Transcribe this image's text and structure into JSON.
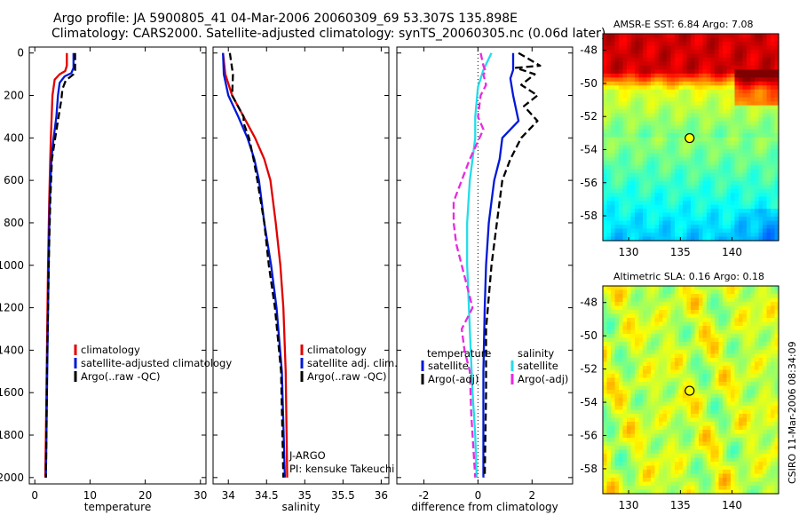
{
  "header": {
    "title_line1": "Argo profile: JA 5900805_41 04-Mar-2006 20060309_69 53.307S 135.898E",
    "title_line2": "Climatology: CARS2000. Satellite-adjusted climatology: synTS_20060305.nc (0.06d later)"
  },
  "side_label": "CSIRO 11-Mar-2006 08:34:09",
  "colors": {
    "climatology": "#e00000",
    "satellite": "#0018d8",
    "argo": "#000000",
    "sal_satellite": "#22dde8",
    "sal_argo": "#e82ae0"
  },
  "chart_data": [
    {
      "type": "line",
      "panel": "temperature",
      "xlabel": "temperature",
      "xlim": [
        -1,
        31
      ],
      "xticks": [
        0,
        10,
        20,
        30
      ],
      "ylim": [
        2050,
        0
      ],
      "yticks": [
        0,
        200,
        400,
        600,
        800,
        1000,
        1200,
        1400,
        1600,
        1800,
        2000
      ],
      "series": [
        {
          "name": "climatology",
          "style": "solid",
          "color_key": "climatology",
          "points": [
            [
              5.8,
              0
            ],
            [
              5.8,
              60
            ],
            [
              5.5,
              85
            ],
            [
              4.5,
              100
            ],
            [
              3.6,
              125
            ],
            [
              3.2,
              200
            ],
            [
              2.9,
              400
            ],
            [
              2.8,
              500
            ],
            [
              2.6,
              700
            ],
            [
              2.4,
              1000
            ],
            [
              2.2,
              1400
            ],
            [
              2.0,
              1800
            ],
            [
              1.9,
              2000
            ]
          ]
        },
        {
          "name": "satellite-adjusted climatology",
          "style": "solid",
          "color_key": "satellite",
          "points": [
            [
              7.0,
              0
            ],
            [
              7.0,
              70
            ],
            [
              6.6,
              95
            ],
            [
              5.4,
              110
            ],
            [
              4.5,
              140
            ],
            [
              4.2,
              200
            ],
            [
              3.9,
              300
            ],
            [
              3.4,
              400
            ],
            [
              3.0,
              500
            ],
            [
              2.7,
              700
            ],
            [
              2.5,
              1000
            ],
            [
              2.3,
              1400
            ],
            [
              2.1,
              1800
            ],
            [
              2.0,
              2000
            ]
          ]
        },
        {
          "name": "Argo(..raw -QC)",
          "style": "dashed",
          "color_key": "argo",
          "points": [
            [
              7.3,
              0
            ],
            [
              7.3,
              80
            ],
            [
              7.0,
              100
            ],
            [
              5.6,
              130
            ],
            [
              5.0,
              170
            ],
            [
              4.8,
              220
            ],
            [
              4.3,
              300
            ],
            [
              3.7,
              400
            ],
            [
              3.1,
              500
            ],
            [
              2.8,
              700
            ],
            [
              2.6,
              900
            ],
            [
              2.4,
              1200
            ],
            [
              2.2,
              1500
            ],
            [
              2.1,
              1800
            ],
            [
              2.0,
              2000
            ]
          ]
        }
      ],
      "legend": {
        "position": "lower-right",
        "entries": [
          "climatology",
          "satellite-adjusted climatology",
          "Argo(..raw -QC)"
        ]
      }
    },
    {
      "type": "line",
      "panel": "salinity",
      "xlabel": "salinity",
      "xlim": [
        33.8,
        36.1
      ],
      "xticks": [
        34,
        34.5,
        35,
        35.5,
        36
      ],
      "ylim": [
        2050,
        0
      ],
      "annotations": [
        "J-ARGO",
        "PI: kensuke Takeuchi"
      ],
      "series": [
        {
          "name": "climatology",
          "style": "solid",
          "color_key": "climatology",
          "points": [
            [
              33.93,
              0
            ],
            [
              33.96,
              100
            ],
            [
              34.05,
              200
            ],
            [
              34.2,
              300
            ],
            [
              34.35,
              400
            ],
            [
              34.47,
              500
            ],
            [
              34.55,
              600
            ],
            [
              34.62,
              800
            ],
            [
              34.68,
              1000
            ],
            [
              34.72,
              1200
            ],
            [
              34.75,
              1500
            ],
            [
              34.77,
              2000
            ]
          ]
        },
        {
          "name": "satellite adj. clim.",
          "style": "solid",
          "color_key": "satellite",
          "points": [
            [
              33.93,
              0
            ],
            [
              33.94,
              100
            ],
            [
              34.0,
              200
            ],
            [
              34.13,
              300
            ],
            [
              34.25,
              400
            ],
            [
              34.34,
              500
            ],
            [
              34.4,
              600
            ],
            [
              34.47,
              800
            ],
            [
              34.56,
              1000
            ],
            [
              34.63,
              1200
            ],
            [
              34.7,
              1500
            ],
            [
              34.74,
              2000
            ]
          ]
        },
        {
          "name": "Argo(..raw -QC)",
          "style": "dashed",
          "color_key": "argo",
          "points": [
            [
              34.02,
              0
            ],
            [
              34.06,
              100
            ],
            [
              34.05,
              200
            ],
            [
              34.2,
              300
            ],
            [
              34.2,
              330
            ],
            [
              34.27,
              400
            ],
            [
              34.33,
              500
            ],
            [
              34.38,
              600
            ],
            [
              34.47,
              800
            ],
            [
              34.53,
              1000
            ],
            [
              34.61,
              1200
            ],
            [
              34.69,
              1500
            ],
            [
              34.72,
              2000
            ]
          ]
        }
      ],
      "legend": {
        "position": "lower-right",
        "entries": [
          "climatology",
          "satellite adj. clim.",
          "Argo(..raw -QC)"
        ]
      }
    },
    {
      "type": "line",
      "panel": "difference",
      "xlabel": "difference from climatology",
      "xlim": [
        -3,
        3.5
      ],
      "xticks": [
        -2,
        0,
        2
      ],
      "ylim": [
        2050,
        0
      ],
      "legend": {
        "position": "lower",
        "titles": [
          "temperature",
          "salinity"
        ],
        "entries": [
          "satellite",
          "Argo(-adj)",
          "satellite",
          "Argo(-adj)"
        ]
      },
      "series": [
        {
          "name": "temperature satellite",
          "style": "solid",
          "color_key": "satellite",
          "points": [
            [
              1.3,
              0
            ],
            [
              1.3,
              80
            ],
            [
              1.2,
              120
            ],
            [
              1.3,
              200
            ],
            [
              1.5,
              320
            ],
            [
              0.9,
              400
            ],
            [
              0.8,
              500
            ],
            [
              0.6,
              600
            ],
            [
              0.5,
              700
            ],
            [
              0.4,
              800
            ],
            [
              0.3,
              1000
            ],
            [
              0.25,
              1200
            ],
            [
              0.2,
              1500
            ],
            [
              0.2,
              1800
            ],
            [
              0.2,
              2000
            ]
          ]
        },
        {
          "name": "temperature Argo(-adj)",
          "style": "dashed",
          "color_key": "argo",
          "points": [
            [
              1.5,
              0
            ],
            [
              2.3,
              60
            ],
            [
              1.4,
              70
            ],
            [
              2.1,
              100
            ],
            [
              1.6,
              150
            ],
            [
              2.2,
              200
            ],
            [
              1.7,
              250
            ],
            [
              2.2,
              320
            ],
            [
              1.6,
              400
            ],
            [
              1.2,
              500
            ],
            [
              0.9,
              600
            ],
            [
              0.7,
              800
            ],
            [
              0.5,
              1000
            ],
            [
              0.3,
              1300
            ],
            [
              0.3,
              1600
            ],
            [
              0.25,
              2000
            ]
          ]
        },
        {
          "name": "salinity satellite",
          "style": "solid",
          "color_key": "sal_satellite",
          "points": [
            [
              0.5,
              0
            ],
            [
              0.2,
              80
            ],
            [
              0,
              160
            ],
            [
              -0.1,
              300
            ],
            [
              -0.1,
              400
            ],
            [
              -0.2,
              500
            ],
            [
              -0.3,
              600
            ],
            [
              -0.4,
              800
            ],
            [
              -0.4,
              1000
            ],
            [
              -0.3,
              1300
            ],
            [
              -0.2,
              1600
            ],
            [
              -0.1,
              1800
            ],
            [
              -0.05,
              2000
            ]
          ]
        },
        {
          "name": "salinity Argo(-adj)",
          "style": "dashed",
          "color_key": "sal_argo",
          "points": [
            [
              0.1,
              0
            ],
            [
              0.2,
              60
            ],
            [
              0.3,
              90
            ],
            [
              0.2,
              100
            ],
            [
              0.3,
              150
            ],
            [
              0.1,
              200
            ],
            [
              0,
              300
            ],
            [
              0.2,
              360
            ],
            [
              -0.3,
              500
            ],
            [
              -0.6,
              600
            ],
            [
              -0.9,
              700
            ],
            [
              -0.9,
              800
            ],
            [
              -0.8,
              900
            ],
            [
              -0.6,
              1000
            ],
            [
              -0.4,
              1100
            ],
            [
              -0.2,
              1200
            ],
            [
              -0.6,
              1300
            ],
            [
              -0.5,
              1400
            ],
            [
              -0.3,
              1500
            ],
            [
              -0.25,
              1700
            ],
            [
              -0.1,
              2000
            ]
          ]
        }
      ]
    },
    {
      "type": "heatmap",
      "panel": "sst_map",
      "title": "AMSR-E SST: 6.84 Argo: 7.08",
      "xlim": [
        127.5,
        144.5
      ],
      "ylim": [
        -59.5,
        -47
      ],
      "xticks": [
        130,
        135,
        140
      ],
      "yticks": [
        -48,
        -50,
        -52,
        -54,
        -56,
        -58
      ],
      "marker": {
        "lon": 135.898,
        "lat": -53.307
      }
    },
    {
      "type": "heatmap",
      "panel": "sla_map",
      "title": "Altimetric SLA: 0.16 Argo: 0.18",
      "xlim": [
        127.5,
        144.5
      ],
      "ylim": [
        -59.5,
        -47
      ],
      "xticks": [
        130,
        135,
        140
      ],
      "yticks": [
        -48,
        -50,
        -52,
        -54,
        -56,
        -58
      ],
      "marker": {
        "lon": 135.898,
        "lat": -53.307
      }
    }
  ]
}
